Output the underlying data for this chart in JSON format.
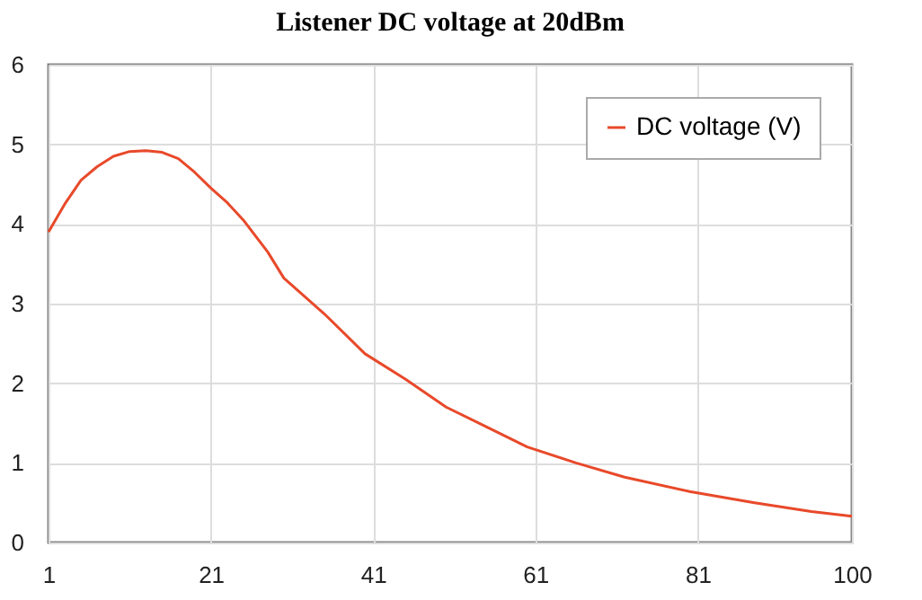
{
  "chart_data": {
    "type": "line",
    "title": "Listener DC voltage at 20dBm",
    "series": [
      {
        "name": "DC voltage (V)",
        "color": "#e8492a",
        "x": [
          1,
          3,
          5,
          7,
          9,
          11,
          13,
          15,
          17,
          19,
          21,
          23,
          25,
          28,
          30,
          35,
          40,
          45,
          50,
          55,
          60,
          66,
          72,
          80,
          88,
          95,
          100
        ],
        "values": [
          3.9,
          4.25,
          4.55,
          4.72,
          4.85,
          4.91,
          4.92,
          4.9,
          4.82,
          4.65,
          4.45,
          4.27,
          4.05,
          3.65,
          3.32,
          2.87,
          2.37,
          2.05,
          1.7,
          1.45,
          1.2,
          1.0,
          0.82,
          0.64,
          0.5,
          0.39,
          0.33
        ]
      }
    ],
    "xlim": [
      1,
      100
    ],
    "xticks": [
      1,
      21,
      41,
      61,
      81,
      100
    ],
    "ylim": [
      0,
      6
    ],
    "yticks": [
      0,
      1,
      2,
      3,
      4,
      5,
      6
    ],
    "grid": true,
    "legend": "top right",
    "marker": "none",
    "line_style": "solid"
  }
}
